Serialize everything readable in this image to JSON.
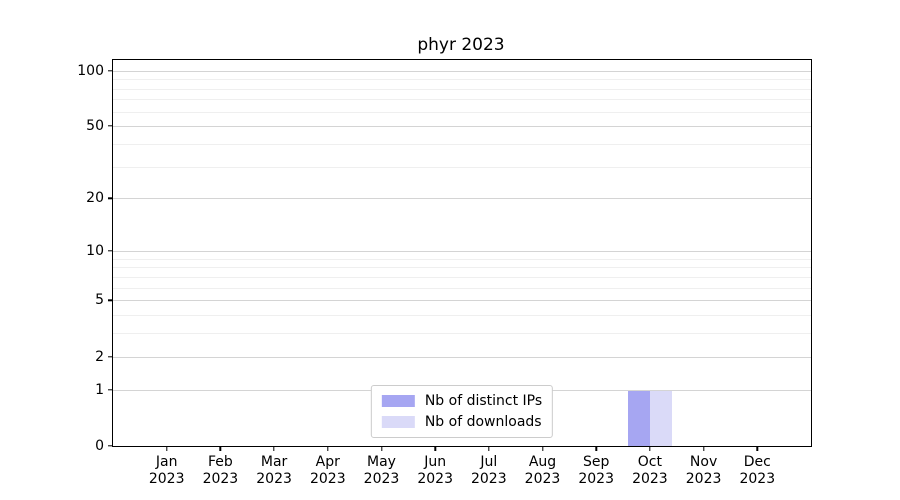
{
  "title": "phyr 2023",
  "chart_data": {
    "type": "bar",
    "title": "phyr 2023",
    "categories": [
      "Jan",
      "Feb",
      "Mar",
      "Apr",
      "May",
      "Jun",
      "Jul",
      "Aug",
      "Sep",
      "Oct",
      "Nov",
      "Dec"
    ],
    "year_label": "2023",
    "series": [
      {
        "name": "Nb of distinct IPs",
        "color": "#a6a6f2",
        "values": [
          0,
          0,
          0,
          0,
          0,
          0,
          0,
          0,
          0,
          1,
          0,
          0
        ]
      },
      {
        "name": "Nb of downloads",
        "color": "#dadaf8",
        "values": [
          0,
          0,
          0,
          0,
          0,
          0,
          0,
          0,
          0,
          1,
          0,
          0
        ]
      }
    ],
    "xlabel": "",
    "ylabel": "",
    "y_scale": "log1p",
    "y_ticks": [
      0,
      1,
      2,
      5,
      10,
      20,
      50,
      100
    ],
    "y_minor_ticks": [
      3,
      4,
      6,
      7,
      8,
      9,
      30,
      40,
      60,
      70,
      80,
      90
    ],
    "ylim": [
      0,
      113
    ],
    "grid": true,
    "legend_position": "lower center",
    "colors": {
      "distinct_ips_bar": "#a6a6f2",
      "downloads_bar": "#dadaf8",
      "major_grid": "#d4d4d4",
      "minor_grid": "#efefef",
      "axis": "#000000",
      "legend_border": "#cccccc"
    }
  }
}
